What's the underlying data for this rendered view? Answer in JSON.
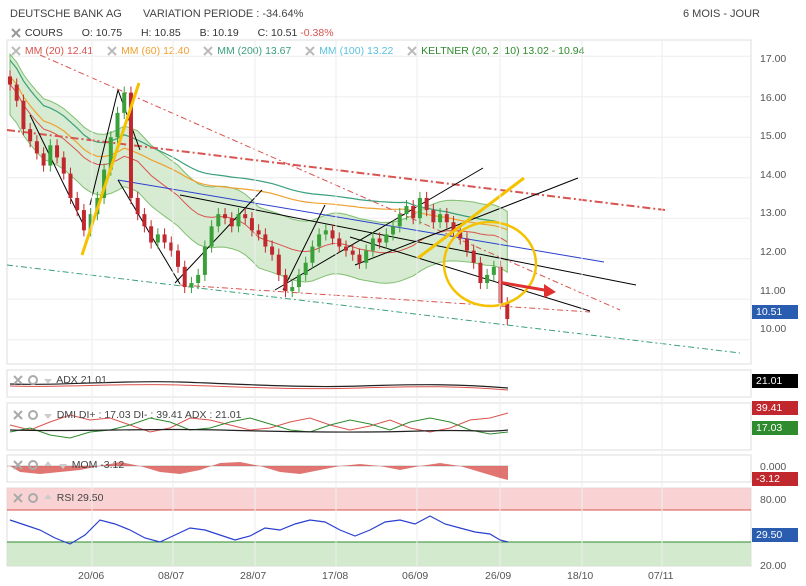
{
  "header": {
    "name": "DEUTSCHE BANK AG",
    "variation": "VARIATION PERIODE : -34.64%",
    "period": "6 MOIS - JOUR"
  },
  "quote": {
    "series_label": "COURS",
    "open": "O: 10.75",
    "high": "H: 10.85",
    "low": "B: 10.19",
    "close_label": "C: 10.51",
    "change": "-0.38%"
  },
  "indicators": [
    {
      "label": "MM (20)",
      "value": "12.41",
      "color": "#d9534f"
    },
    {
      "label": "MM (60)",
      "value": "12.40",
      "color": "#f0a030"
    },
    {
      "label": "MM (200)",
      "value": "13.67",
      "color": "#3aa07a"
    },
    {
      "label": "MM (100)",
      "value": "13.22",
      "color": "#5bc0de"
    },
    {
      "label": "KELTNER (20, 2, 10)",
      "value": "13.02 - 10.94",
      "color": "#2e8b2e"
    }
  ],
  "panels": {
    "adx": {
      "label": "ADX",
      "value": "21.01",
      "box": "21.01"
    },
    "dmi": {
      "label": "DMI DI+ : 17.03 DI- : 39.41 ADX : 21.01",
      "box_top": "39.41",
      "box_bottom": "17.03"
    },
    "mom": {
      "label": "MOM",
      "value": "-3.12",
      "zero": "0.000",
      "box": "-3.12"
    },
    "rsi": {
      "label": "RSI",
      "value": "29.50",
      "upper": "80.00",
      "lower": "20.00",
      "box": "29.50"
    }
  },
  "chart_data": {
    "type": "candlestick",
    "ylim": [
      9.4,
      17.4
    ],
    "yticks": [
      "17.00",
      "16.00",
      "15.00",
      "14.00",
      "13.00",
      "12.00",
      "11.00",
      "10.00"
    ],
    "last_price": "10.51",
    "x_labels": [
      "20/06",
      "08/07",
      "28/07",
      "17/08",
      "06/09",
      "26/09",
      "18/10",
      "07/11"
    ],
    "closes": [
      16.3,
      15.9,
      15.2,
      14.9,
      14.6,
      14.3,
      14.8,
      14.5,
      14.1,
      13.5,
      13.2,
      12.7,
      13.1,
      13.5,
      14.2,
      15.0,
      15.6,
      16.1,
      13.5,
      13.1,
      12.8,
      12.4,
      12.6,
      12.4,
      12.2,
      11.8,
      11.3,
      11.4,
      11.6,
      12.3,
      12.8,
      13.1,
      13.0,
      12.8,
      13.1,
      13.0,
      12.7,
      12.6,
      12.3,
      12.1,
      11.6,
      11.2,
      11.3,
      11.6,
      11.9,
      12.3,
      12.6,
      12.7,
      12.5,
      12.3,
      12.2,
      12.1,
      11.9,
      12.2,
      12.5,
      12.4,
      12.6,
      12.8,
      13.1,
      13.3,
      13.0,
      13.5,
      13.2,
      12.9,
      13.1,
      12.9,
      12.7,
      12.5,
      12.2,
      11.9,
      11.4,
      11.6,
      11.8,
      10.9,
      10.51
    ],
    "annotations": [
      "highlight circle around latest candles",
      "red arrow pointing down-right"
    ]
  }
}
